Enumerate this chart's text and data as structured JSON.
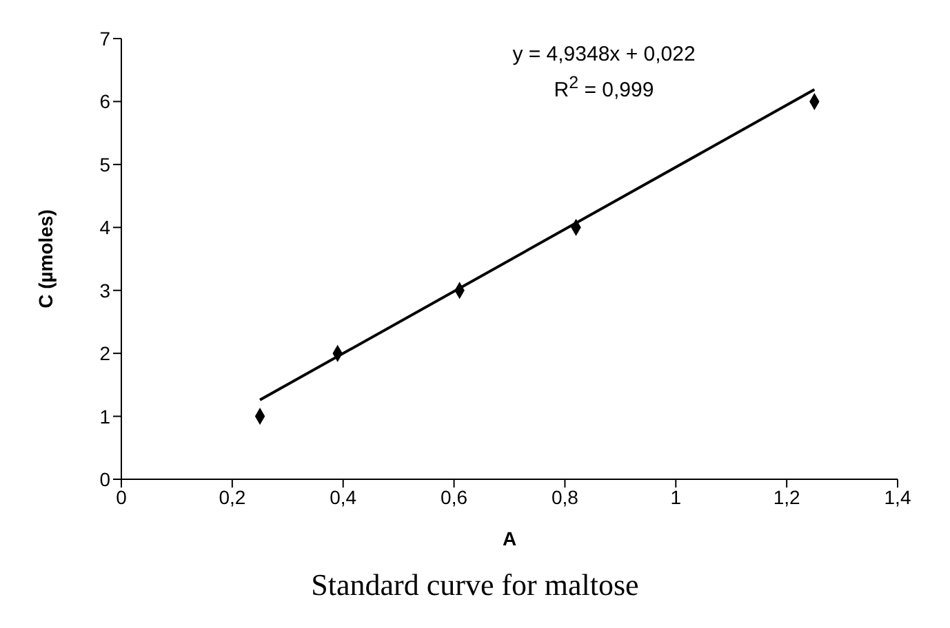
{
  "chart_data": {
    "type": "scatter",
    "title": "Standard curve for maltose",
    "xlabel": "A",
    "ylabel": "C (µmoles)",
    "annotations": [
      "y = 4,9348x + 0,022",
      "R$^{2}$ = 0,999"
    ],
    "series": [
      {
        "color": "#000000",
        "marker": "diamond",
        "x": [
          0.25,
          0.39,
          0.61,
          0.82,
          1.25
        ],
        "values": [
          1,
          2,
          3,
          4,
          6
        ]
      },
      {
        "type": "line",
        "color": "#000000",
        "marker": "none",
        "x": [
          0.25,
          1.25
        ],
        "values": [
          1.26,
          6.19
        ]
      }
    ],
    "xlim": [
      0,
      1.4
    ],
    "xticks": [
      0,
      {
        "value": 0.2,
        "label": "0,2"
      },
      {
        "value": 0.4,
        "label": "0,4"
      },
      {
        "value": 0.6,
        "label": "0,6"
      },
      {
        "value": 0.8,
        "label": "0,8"
      },
      1,
      {
        "value": 1.2,
        "label": "1,2"
      },
      {
        "value": 1.4,
        "label": "1,4"
      }
    ],
    "ylim": [
      0,
      7
    ],
    "yticks": [
      0,
      1,
      2,
      3,
      4,
      5,
      6,
      7
    ]
  }
}
